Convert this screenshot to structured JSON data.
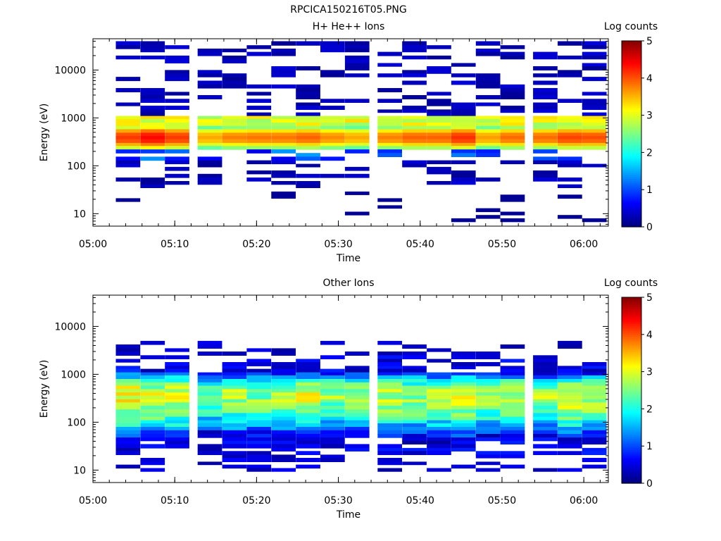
{
  "figure_title": "RPCICA150216T05.PNG",
  "chart_data": [
    {
      "type": "heatmap",
      "title": "H+ He++ Ions",
      "xlabel": "Time",
      "ylabel": "Energy (eV)",
      "xlim": [
        "05:00",
        "06:03"
      ],
      "ylim": [
        5.5,
        45000
      ],
      "y_scale": "log",
      "x_ticks": [
        "05:00",
        "05:10",
        "05:20",
        "05:30",
        "05:40",
        "05:50",
        "06:00"
      ],
      "y_ticks": [
        "10",
        "100",
        "1000",
        "10000"
      ],
      "colorbar": {
        "label": "Log counts",
        "range": [
          0,
          5
        ],
        "ticks": [
          "0",
          "1",
          "2",
          "3",
          "4",
          "5"
        ],
        "colormap": "jet"
      },
      "time_bins": [
        "05:03",
        "05:06",
        "05:09",
        "05:13",
        "05:16",
        "05:19",
        "05:22",
        "05:25",
        "05:28",
        "05:31",
        "05:35",
        "05:38",
        "05:41",
        "05:44",
        "05:47",
        "05:50",
        "05:54",
        "05:57",
        "06:00"
      ],
      "energy_bins_ev": [
        40000,
        33000,
        28000,
        24000,
        20000,
        17000,
        14000,
        12000,
        10000,
        8500,
        7200,
        6000,
        5000,
        4200,
        3500,
        3000,
        2500,
        2100,
        1800,
        1500,
        1300,
        1100,
        950,
        800,
        680,
        580,
        490,
        420,
        360,
        300,
        260,
        220,
        185,
        155,
        130,
        110,
        95,
        80,
        68,
        57,
        48,
        41,
        35,
        29,
        25,
        21,
        18,
        15,
        13,
        11,
        9.4,
        8
      ],
      "spectrum_profile": {
        "core_log_counts_by_time": [
          4.1,
          4.35,
          4.1,
          3.55,
          3.75,
          3.8,
          3.8,
          3.9,
          3.7,
          3.55,
          3.75,
          3.9,
          3.9,
          4.15,
          3.6,
          3.85,
          3.85,
          4.05,
          4.0
        ],
        "core_energy_ev": 420,
        "upper_shoulder_energy_ev": 1000,
        "lower_edge_energy_ev": 230,
        "sparse_low_count_fill": "dark blue random bins from 10 eV to 40 keV"
      }
    },
    {
      "type": "heatmap",
      "title": "Other Ions",
      "xlabel": "Time",
      "ylabel": "Energy (eV)",
      "xlim": [
        "05:00",
        "06:03"
      ],
      "ylim": [
        5.5,
        45000
      ],
      "y_scale": "log",
      "x_ticks": [
        "05:00",
        "05:10",
        "05:20",
        "05:30",
        "05:40",
        "05:50",
        "06:00"
      ],
      "y_ticks": [
        "10",
        "100",
        "1000",
        "10000"
      ],
      "colorbar": {
        "label": "Log counts",
        "range": [
          0,
          5
        ],
        "ticks": [
          "0",
          "1",
          "2",
          "3",
          "4",
          "5"
        ],
        "colormap": "jet"
      },
      "time_bins": [
        "05:03",
        "05:06",
        "05:09",
        "05:13",
        "05:16",
        "05:19",
        "05:22",
        "05:25",
        "05:28",
        "05:31",
        "05:35",
        "05:38",
        "05:41",
        "05:44",
        "05:47",
        "05:50",
        "05:54",
        "05:57",
        "06:00"
      ],
      "energy_bins_ev": [
        40000,
        33000,
        28000,
        24000,
        20000,
        17000,
        14000,
        12000,
        10000,
        8500,
        7200,
        6000,
        5000,
        4200,
        3500,
        3000,
        2500,
        2100,
        1800,
        1500,
        1300,
        1100,
        950,
        800,
        680,
        580,
        490,
        420,
        360,
        300,
        260,
        220,
        185,
        155,
        130,
        110,
        95,
        80,
        68,
        57,
        48,
        41,
        35,
        29,
        25,
        21,
        18,
        15,
        13,
        11,
        9.4,
        8
      ],
      "spectrum_profile": {
        "core_log_counts_by_time": [
          3.05,
          2.9,
          2.95,
          2.3,
          2.7,
          2.55,
          2.7,
          2.9,
          2.6,
          2.6,
          2.75,
          2.65,
          2.7,
          2.95,
          2.6,
          2.8,
          2.65,
          3.0,
          2.75
        ],
        "core_energy_ev": 420,
        "spread_low_energy_ev": 25,
        "spread_high_energy_ev": 2500,
        "sparse_low_count_fill": "dark blue bins from 10 eV to 5 keV"
      }
    }
  ]
}
